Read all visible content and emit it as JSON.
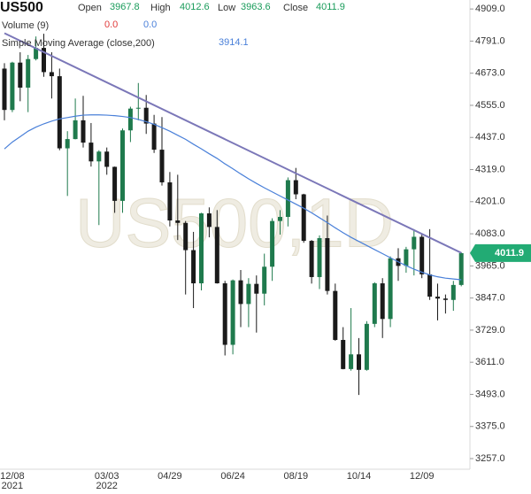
{
  "chart_data": {
    "type": "candlestick",
    "title": "US500",
    "watermark": "US500,1D",
    "header": {
      "open_label": "Open",
      "open": 3967.8,
      "high_label": "High",
      "high": 4012.6,
      "low_label": "Low",
      "low": 3963.6,
      "close_label": "Close",
      "volume_label": "Volume (9)",
      "volume_values": [
        {
          "value": 0,
          "label": "0.0"
        },
        {
          "value": 0,
          "label": "0.0"
        }
      ]
    },
    "categories": [
      null,
      "12/08",
      null,
      null,
      null,
      null,
      null,
      null,
      null,
      null,
      null,
      null,
      null,
      "03/03",
      null,
      null,
      null,
      null,
      null,
      null,
      null,
      "04/29",
      null,
      null,
      null,
      null,
      null,
      null,
      null,
      "06/24",
      null,
      null,
      null,
      null,
      null,
      null,
      null,
      "08/19",
      null,
      null,
      null,
      null,
      null,
      null,
      null,
      "10/14",
      null,
      null,
      null,
      null,
      null,
      null,
      null,
      "12/09",
      null,
      null,
      null,
      null,
      null
    ],
    "category_years": [
      null,
      "2021",
      null,
      null,
      null,
      null,
      null,
      null,
      null,
      null,
      null,
      null,
      null,
      "2022",
      null,
      null,
      null,
      null,
      null,
      null,
      null,
      null,
      null,
      null,
      null,
      null,
      null,
      null,
      null,
      null,
      null,
      null,
      null,
      null,
      null,
      null,
      null,
      null,
      null,
      null,
      null,
      null,
      null,
      null,
      null,
      null,
      null,
      null,
      null,
      null,
      null,
      null,
      null,
      null,
      null,
      null,
      null,
      null,
      null
    ],
    "open": [
      4690,
      4538,
      4712,
      4620,
      4725,
      4766,
      4677,
      4662,
      4397,
      4431,
      4500,
      4418,
      4349,
      4385,
      4329,
      4204,
      4463,
      4543,
      4546,
      4488,
      4392,
      4272,
      4132,
      4123,
      4023,
      3901,
      4158,
      4108,
      3901,
      3675,
      3912,
      3825,
      3899,
      3863,
      3962,
      4130,
      4145,
      4280,
      4228,
      4057,
      3924,
      4067,
      3873,
      3693,
      3586,
      3640,
      3583,
      3752,
      3901,
      3770,
      3993,
      3965,
      4026,
      4072,
      3934,
      3852,
      3845,
      3840,
      3895
    ],
    "high": [
      4710,
      4715,
      4750,
      4740,
      4808,
      4818,
      4750,
      4690,
      4460,
      4580,
      4590,
      4490,
      4390,
      4400,
      4330,
      4470,
      4550,
      4637,
      4593,
      4520,
      4512,
      4310,
      4300,
      4130,
      4090,
      4160,
      4180,
      4170,
      3910,
      3915,
      3950,
      3920,
      3930,
      4010,
      4140,
      4170,
      4290,
      4325,
      4230,
      4060,
      4077,
      4150,
      3900,
      3740,
      3810,
      3700,
      3762,
      3905,
      3920,
      4000,
      4030,
      4035,
      4100,
      4080,
      4100,
      3900,
      3860,
      3910,
      4015
    ],
    "low": [
      4500,
      4530,
      4570,
      4530,
      4720,
      4660,
      4580,
      4390,
      4222,
      4430,
      4400,
      4330,
      4115,
      4300,
      4160,
      4160,
      4420,
      4500,
      4450,
      4380,
      4260,
      4110,
      4060,
      3860,
      3810,
      3875,
      4070,
      3900,
      3636,
      3640,
      3740,
      3740,
      3720,
      3820,
      3910,
      4080,
      4110,
      4210,
      4050,
      3900,
      3880,
      3860,
      3690,
      3585,
      3580,
      3491,
      3580,
      3740,
      3700,
      3740,
      3910,
      3940,
      3930,
      3920,
      3840,
      3765,
      3790,
      3800,
      3890
    ],
    "close": [
      4538,
      4712,
      4620,
      4725,
      4766,
      4677,
      4662,
      4397,
      4431,
      4500,
      4418,
      4349,
      4385,
      4329,
      4204,
      4463,
      4543,
      4546,
      4488,
      4392,
      4272,
      4132,
      4123,
      4023,
      3901,
      4158,
      4108,
      3901,
      3675,
      3912,
      3825,
      3899,
      3863,
      3962,
      4130,
      4145,
      4280,
      4228,
      4057,
      3924,
      4067,
      3873,
      3693,
      3586,
      3640,
      3583,
      3752,
      3901,
      3770,
      3993,
      3965,
      4026,
      4072,
      3934,
      3852,
      3845,
      3840,
      3895,
      4011.9
    ],
    "up_color": "#1f7a4d",
    "down_color": "#1a1a1a",
    "price_color": "#22ab74",
    "overlays": [
      {
        "name": "Simple Moving Average (close,200)",
        "color": "#4a80d9",
        "values": [
          4395,
          4420,
          4440,
          4460,
          4475,
          4487,
          4497,
          4505,
          4510,
          4515,
          4519,
          4520,
          4520,
          4519,
          4517,
          4514,
          4510,
          4503,
          4495,
          4485,
          4473,
          4460,
          4445,
          4430,
          4412,
          4395,
          4377,
          4360,
          4340,
          4322,
          4303,
          4285,
          4268,
          4252,
          4237,
          4222,
          4207,
          4192,
          4177,
          4160,
          4142,
          4124,
          4105,
          4087,
          4070,
          4055,
          4040,
          4025,
          4010,
          3995,
          3980,
          3966,
          3953,
          3942,
          3932,
          3925,
          3920,
          3917,
          3914.1
        ]
      }
    ],
    "trendline": {
      "color": "#7b77b8",
      "values": [
        4820,
        4013
      ]
    },
    "ylim": [
      3218,
      4942
    ],
    "yticks": [
      {
        "value": 4909,
        "label": "4909.0"
      },
      {
        "value": 4791,
        "label": "4791.0"
      },
      {
        "value": 4673,
        "label": "4673.0"
      },
      {
        "value": 4555,
        "label": "4555.0"
      },
      {
        "value": 4437,
        "label": "4437.0"
      },
      {
        "value": 4319,
        "label": "4319.0"
      },
      {
        "value": 4201,
        "label": "4201.0"
      },
      {
        "value": 4083,
        "label": "4083.0"
      },
      {
        "value": 3965,
        "label": "3965.0"
      },
      {
        "value": 3847,
        "label": "3847.0"
      },
      {
        "value": 3729,
        "label": "3729.0"
      },
      {
        "value": 3611,
        "label": "3611.0"
      },
      {
        "value": 3493,
        "label": "3493.0"
      },
      {
        "value": 3375,
        "label": "3375.0"
      },
      {
        "value": 3257,
        "label": "3257.0"
      }
    ]
  }
}
